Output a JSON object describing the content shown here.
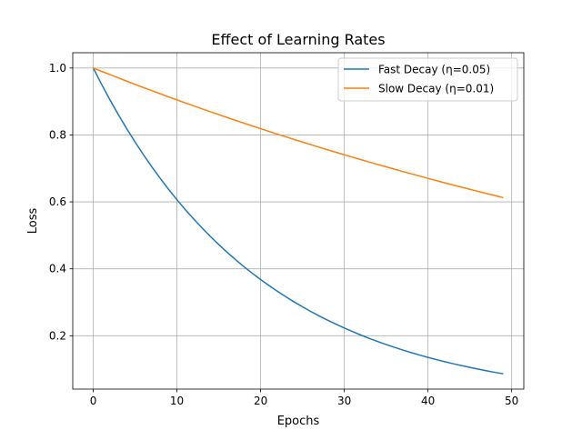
{
  "chart_data": {
    "type": "line",
    "title": "Effect of Learning Rates",
    "xlabel": "Epochs",
    "ylabel": "Loss",
    "xlim": [
      -2.45,
      51.45
    ],
    "ylim": [
      0.0406,
      1.0457
    ],
    "xticks": [
      0,
      10,
      20,
      30,
      40,
      50
    ],
    "xtick_labels": [
      "0",
      "10",
      "20",
      "30",
      "40",
      "50"
    ],
    "yticks": [
      0.2,
      0.4,
      0.6,
      0.8,
      1.0
    ],
    "ytick_labels": [
      "0.2",
      "0.4",
      "0.6",
      "0.8",
      "1.0"
    ],
    "grid": true,
    "legend_placement": "upper-right",
    "x": [
      0,
      1,
      2,
      3,
      4,
      5,
      6,
      7,
      8,
      9,
      10,
      11,
      12,
      13,
      14,
      15,
      16,
      17,
      18,
      19,
      20,
      21,
      22,
      23,
      24,
      25,
      26,
      27,
      28,
      29,
      30,
      31,
      32,
      33,
      34,
      35,
      36,
      37,
      38,
      39,
      40,
      41,
      42,
      43,
      44,
      45,
      46,
      47,
      48,
      49
    ],
    "series": [
      {
        "name": "Fast Decay (η=0.05)",
        "color": "#1f77b4",
        "values": [
          1,
          0.9512,
          0.9048,
          0.8607,
          0.8187,
          0.7788,
          0.7408,
          0.7047,
          0.6703,
          0.6376,
          0.6065,
          0.5769,
          0.5488,
          0.522,
          0.4966,
          0.4724,
          0.4493,
          0.4274,
          0.4066,
          0.3867,
          0.3679,
          0.3499,
          0.3329,
          0.3166,
          0.3012,
          0.2865,
          0.2725,
          0.2592,
          0.2466,
          0.2346,
          0.2231,
          0.2122,
          0.2019,
          0.192,
          0.1827,
          0.1738,
          0.1653,
          0.1572,
          0.1496,
          0.1423,
          0.1353,
          0.1287,
          0.1225,
          0.1165,
          0.1108,
          0.1054,
          0.1003,
          0.0954,
          0.0907,
          0.0863
        ]
      },
      {
        "name": "Slow Decay (η=0.01)",
        "color": "#ff7f0e",
        "values": [
          1,
          0.99,
          0.9802,
          0.9704,
          0.9608,
          0.9512,
          0.9418,
          0.9324,
          0.9231,
          0.9139,
          0.9048,
          0.8958,
          0.8869,
          0.8781,
          0.8694,
          0.8607,
          0.8521,
          0.8437,
          0.8353,
          0.827,
          0.8187,
          0.8106,
          0.8025,
          0.7945,
          0.7866,
          0.7788,
          0.7711,
          0.7634,
          0.7558,
          0.7483,
          0.7408,
          0.7334,
          0.7261,
          0.7189,
          0.7118,
          0.7047,
          0.6977,
          0.6907,
          0.6839,
          0.6771,
          0.6703,
          0.6637,
          0.657,
          0.6505,
          0.644,
          0.6376,
          0.6313,
          0.625,
          0.6188,
          0.6126
        ]
      }
    ]
  }
}
